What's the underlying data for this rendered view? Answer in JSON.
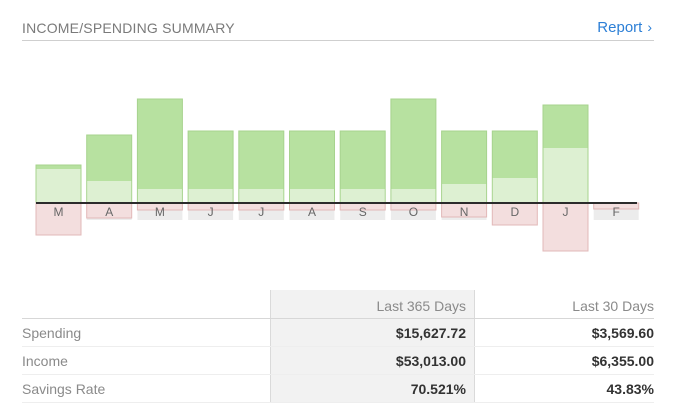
{
  "header": {
    "title": "INCOME/SPENDING SUMMARY",
    "report_label": "Report",
    "report_icon": "chevron-right-icon"
  },
  "colors": {
    "income": "#b7e1a0",
    "income_spent": "#ddf0d2",
    "spending_excess": "#f3dede",
    "link": "#2c7fd6"
  },
  "chart_data": {
    "type": "bar",
    "categories": [
      "M",
      "A",
      "M",
      "J",
      "J",
      "A",
      "S",
      "O",
      "N",
      "D",
      "J",
      "F"
    ],
    "series": [
      {
        "values": [
          3800,
          6800,
          10400,
          7200,
          7200,
          7200,
          7200,
          10400,
          7200,
          7200,
          9800,
          0
        ]
      },
      {
        "values": [
          3400,
          2200,
          1400,
          1400,
          1400,
          1400,
          1400,
          1400,
          1900,
          2500,
          5500,
          0
        ]
      },
      {
        "values": [
          3200,
          1500,
          700,
          700,
          700,
          700,
          700,
          700,
          1400,
          2200,
          4800,
          600
        ]
      }
    ],
    "ylim": [
      -5500,
      11000
    ],
    "grid": false,
    "legend": "none"
  },
  "summary": {
    "columns": [
      "",
      "Last 365 Days",
      "Last 30 Days"
    ],
    "rows": [
      {
        "label": "Spending",
        "last365": "$15,627.72",
        "last30": "$3,569.60"
      },
      {
        "label": "Income",
        "last365": "$53,013.00",
        "last30": "$6,355.00"
      },
      {
        "label": "Savings Rate",
        "last365": "70.521%",
        "last30": "43.83%"
      }
    ]
  }
}
